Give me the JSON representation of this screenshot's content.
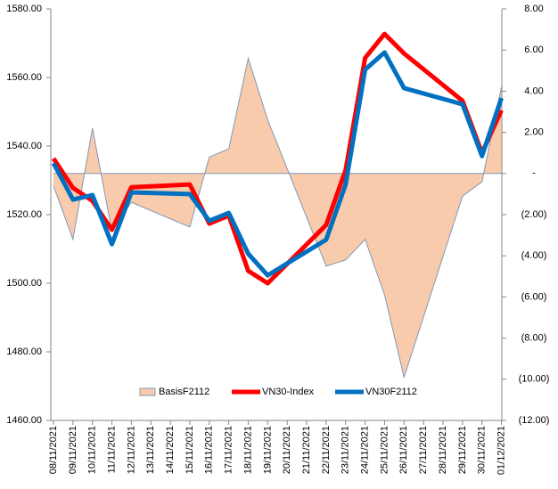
{
  "chart_data": {
    "type": "line",
    "categories": [
      "08/11/2021",
      "09/11/2021",
      "10/11/2021",
      "11/11/2021",
      "12/11/2021",
      "13/11/2021",
      "14/11/2021",
      "15/11/2021",
      "16/11/2021",
      "17/11/2021",
      "18/11/2021",
      "19/11/2021",
      "20/11/2021",
      "21/11/2021",
      "22/11/2021",
      "23/11/2021",
      "24/11/2021",
      "25/11/2021",
      "26/11/2021",
      "27/11/2021",
      "28/11/2021",
      "29/11/2021",
      "30/11/2021",
      "01/12/2021"
    ],
    "series": [
      {
        "name": "BasisF2112",
        "kind": "area",
        "axis": "y2",
        "color": "#f8cbad",
        "edge": "#8497b0",
        "x": [
          "08/11/2021",
          "09/11/2021",
          "10/11/2021",
          "11/11/2021",
          "12/11/2021",
          "15/11/2021",
          "16/11/2021",
          "17/11/2021",
          "18/11/2021",
          "19/11/2021",
          "22/11/2021",
          "23/11/2021",
          "24/11/2021",
          "25/11/2021",
          "26/11/2021",
          "29/11/2021",
          "30/11/2021",
          "01/12/2021"
        ],
        "values": [
          -0.6,
          -3.2,
          2.2,
          -2.8,
          -1.4,
          -2.6,
          0.8,
          1.2,
          5.6,
          2.6,
          -4.5,
          -4.2,
          -3.2,
          -5.9,
          -9.9,
          -1.1,
          -0.4,
          4.2
        ]
      },
      {
        "name": "VN30-Index",
        "kind": "line",
        "color": "#ff0000",
        "x": [
          "08/11/2021",
          "09/11/2021",
          "10/11/2021",
          "11/11/2021",
          "12/11/2021",
          "15/11/2021",
          "16/11/2021",
          "17/11/2021",
          "18/11/2021",
          "19/11/2021",
          "22/11/2021",
          "23/11/2021",
          "24/11/2021",
          "25/11/2021",
          "26/11/2021",
          "29/11/2021",
          "30/11/2021",
          "01/12/2021"
        ],
        "values": [
          1536.4,
          1527.8,
          1524,
          1515.6,
          1528,
          1528.8,
          1517.4,
          1519.7,
          1503.6,
          1500,
          1517,
          1533,
          1565.7,
          1572.7,
          1567,
          1553.2,
          1538,
          1550.4
        ]
      },
      {
        "name": "VN30F2112",
        "kind": "line",
        "color": "#0070c0",
        "x": [
          "08/11/2021",
          "09/11/2021",
          "10/11/2021",
          "11/11/2021",
          "12/11/2021",
          "15/11/2021",
          "16/11/2021",
          "17/11/2021",
          "18/11/2021",
          "19/11/2021",
          "22/11/2021",
          "23/11/2021",
          "24/11/2021",
          "25/11/2021",
          "26/11/2021",
          "29/11/2021",
          "30/11/2021",
          "01/12/2021"
        ],
        "values": [
          1535,
          1524.4,
          1525.7,
          1511.4,
          1526.5,
          1526,
          1518.2,
          1520.5,
          1508.6,
          1502.3,
          1512.7,
          1528.8,
          1562.3,
          1567.3,
          1556.9,
          1552.2,
          1537.1,
          1554
        ]
      }
    ],
    "ylim": [
      1460,
      1580
    ],
    "yticks": [
      {
        "value": 1460,
        "label": "1460.00"
      },
      {
        "value": 1480,
        "label": "1480.00"
      },
      {
        "value": 1500,
        "label": "1500.00"
      },
      {
        "value": 1520,
        "label": "1520.00"
      },
      {
        "value": 1540,
        "label": "1540.00"
      },
      {
        "value": 1560,
        "label": "1560.00"
      },
      {
        "value": 1580,
        "label": "1580.00"
      }
    ],
    "y2lim": [
      -12,
      8
    ],
    "y2ticks": [
      {
        "value": -12,
        "label": "(12.00)"
      },
      {
        "value": -10,
        "label": "(10.00)"
      },
      {
        "value": -8,
        "label": "(8.00)"
      },
      {
        "value": -6,
        "label": "(6.00)"
      },
      {
        "value": -4,
        "label": "(4.00)"
      },
      {
        "value": -2,
        "label": "(2.00)"
      },
      {
        "value": 0,
        "label": "-"
      },
      {
        "value": 2,
        "label": "2.00"
      },
      {
        "value": 4,
        "label": "4.00"
      },
      {
        "value": 6,
        "label": "6.00"
      },
      {
        "value": 8,
        "label": "8.00"
      }
    ],
    "legend": "bottom"
  }
}
